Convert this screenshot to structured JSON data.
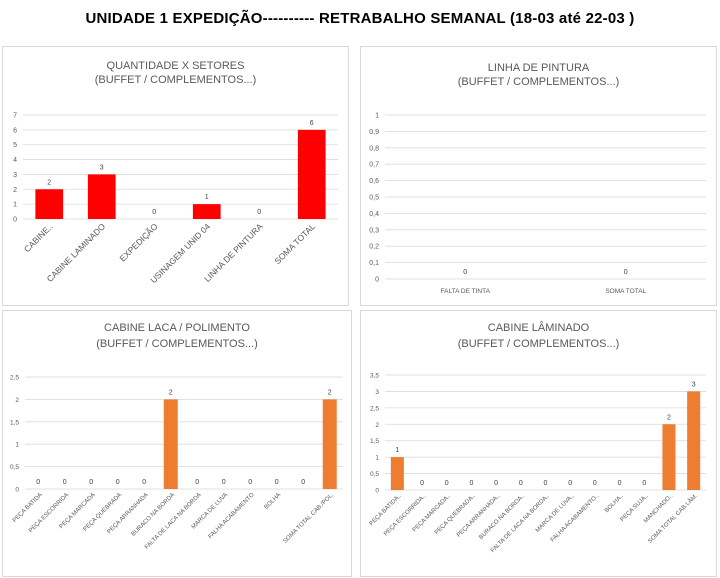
{
  "header": {
    "title": "UNIDADE 1 EXPEDIÇÃO----------   RETRABALHO SEMANAL (18-03 até 22-03 )"
  },
  "chart_data": [
    {
      "type": "bar",
      "title": "QUANTIDADE X SETORES",
      "subtitle": "(BUFFET / COMPLEMENTOS...)",
      "color": "#ff0000",
      "categories": [
        "CABINE..",
        "CABINE LAMINADO",
        "EXPEDIÇÃO",
        "USINAGEM UNID 04",
        "LINHA DE PINTURA",
        "SOMA TOTAL"
      ],
      "values": [
        2,
        3,
        0,
        1,
        0,
        6
      ],
      "ylim": [
        0,
        7
      ],
      "yticks": [
        "0",
        "1",
        "2",
        "3",
        "4",
        "5",
        "6",
        "7"
      ],
      "grid": true
    },
    {
      "type": "bar",
      "title": "LINHA DE PINTURA",
      "subtitle": "(BUFFET / COMPLEMENTOS...)",
      "color": "#ff0000",
      "categories": [
        "FALTA DE TINTA",
        "SOMA TOTAL"
      ],
      "values": [
        0,
        0
      ],
      "ylim": [
        0,
        1
      ],
      "yticks": [
        "0",
        "0,1",
        "0,2",
        "0,3",
        "0,4",
        "0,5",
        "0,6",
        "0,7",
        "0,8",
        "0,9",
        "1"
      ],
      "grid": true
    },
    {
      "type": "bar",
      "title": "CABINE LACA / POLIMENTO",
      "subtitle": "(BUFFET / COMPLEMENTOS...)",
      "color": "#ed7d31",
      "categories": [
        "PEÇA BATIDA",
        "PEÇA ESCORRIDA",
        "PEÇA MARCADA",
        "PEÇA QUEBRADA",
        "PEÇA ARRANHADA",
        "BURACO NA BORDA",
        "FALTA DE LACA NA BORDA",
        "MARCA DE LUVA",
        "FALHA ACABAMENTO",
        "BOLHA",
        "",
        "SOMA TOTAL CAB./POL."
      ],
      "values": [
        0,
        0,
        0,
        0,
        0,
        2,
        0,
        0,
        0,
        0,
        0,
        2
      ],
      "ylim": [
        0,
        2.5
      ],
      "yticks": [
        "0",
        "0,5",
        "1",
        "1,5",
        "2",
        "2,5"
      ],
      "grid": true
    },
    {
      "type": "bar",
      "title": "CABINE LÂMINADO",
      "subtitle": "(BUFFET / COMPLEMENTOS...)",
      "color": "#ed7d31",
      "categories": [
        "PEÇA BATIDA..",
        "PEÇA ESCORRIDA..",
        "PEÇA MARCADA..",
        "PEÇA QUEBRADA..",
        "PEÇA ARRANHADA..",
        "BURACO NA BORDA..",
        "FALTA DE LACA NA BORDA..",
        "MARCA DE LUVA..",
        "FALHA ACABAMENTO..",
        "BOLHA..",
        "PEÇA SUJA..",
        "MANCHADO..",
        "SOMA TOTAL CAB.LÂM."
      ],
      "values": [
        1,
        0,
        0,
        0,
        0,
        0,
        0,
        0,
        0,
        0,
        0,
        2,
        3
      ],
      "ylim": [
        0,
        3.5
      ],
      "yticks": [
        "0",
        "0,5",
        "1",
        "1,5",
        "2",
        "2,5",
        "3",
        "3,5"
      ],
      "grid": true
    }
  ]
}
